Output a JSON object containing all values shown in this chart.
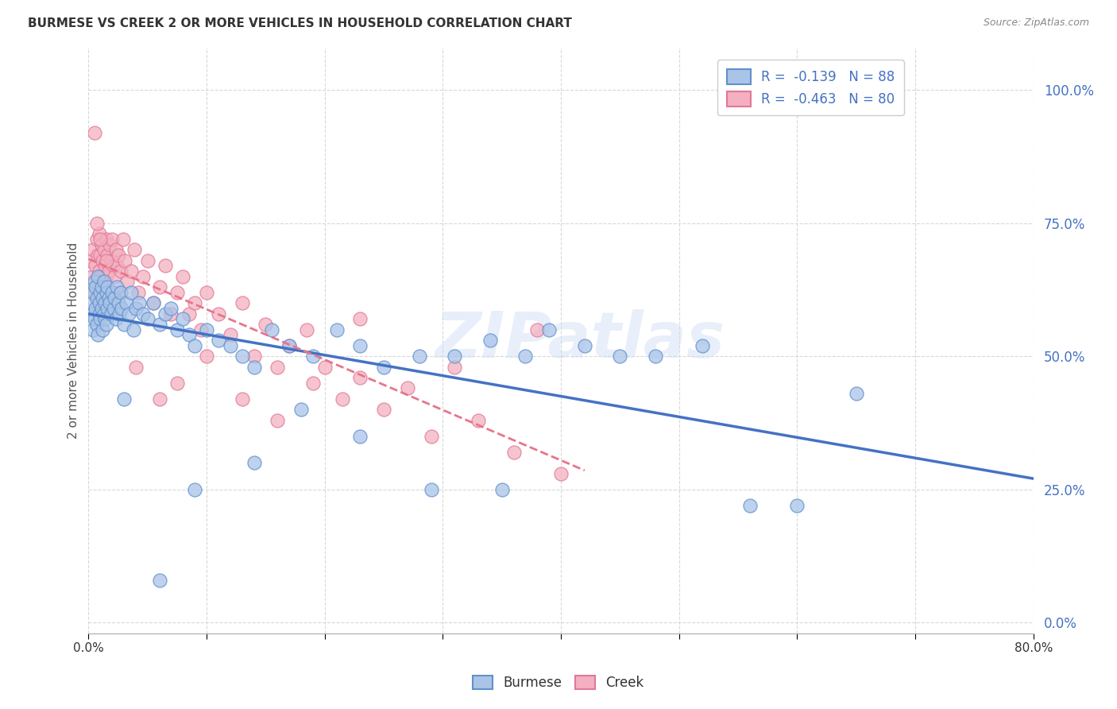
{
  "title": "BURMESE VS CREEK 2 OR MORE VEHICLES IN HOUSEHOLD CORRELATION CHART",
  "source": "Source: ZipAtlas.com",
  "ylabel": "2 or more Vehicles in Household",
  "ytick_vals": [
    0.0,
    0.25,
    0.5,
    0.75,
    1.0
  ],
  "ytick_labels": [
    "0.0%",
    "25.0%",
    "50.0%",
    "75.0%",
    "100.0%"
  ],
  "xlim": [
    0.0,
    0.8
  ],
  "ylim": [
    -0.02,
    1.08
  ],
  "burmese_R": -0.139,
  "burmese_N": 88,
  "creek_R": -0.463,
  "creek_N": 80,
  "burmese_color": "#aac4e8",
  "burmese_edge_color": "#6090cc",
  "creek_color": "#f4b0c0",
  "creek_edge_color": "#e07898",
  "burmese_line_color": "#4472c4",
  "creek_line_color": "#e8758a",
  "watermark": "ZIPatlas",
  "background_color": "#ffffff",
  "grid_color": "#d8d8d8",
  "legend_text_color": "#4472c4",
  "burmese_x": [
    0.002,
    0.003,
    0.004,
    0.004,
    0.005,
    0.005,
    0.006,
    0.006,
    0.007,
    0.007,
    0.008,
    0.008,
    0.009,
    0.009,
    0.01,
    0.01,
    0.011,
    0.011,
    0.012,
    0.012,
    0.013,
    0.013,
    0.014,
    0.014,
    0.015,
    0.015,
    0.016,
    0.016,
    0.017,
    0.018,
    0.019,
    0.02,
    0.021,
    0.022,
    0.023,
    0.024,
    0.025,
    0.026,
    0.027,
    0.028,
    0.03,
    0.032,
    0.034,
    0.036,
    0.038,
    0.04,
    0.043,
    0.046,
    0.05,
    0.055,
    0.06,
    0.065,
    0.07,
    0.075,
    0.08,
    0.085,
    0.09,
    0.1,
    0.11,
    0.12,
    0.13,
    0.14,
    0.155,
    0.17,
    0.19,
    0.21,
    0.23,
    0.25,
    0.28,
    0.31,
    0.34,
    0.37,
    0.39,
    0.42,
    0.45,
    0.48,
    0.52,
    0.56,
    0.6,
    0.65,
    0.29,
    0.35,
    0.23,
    0.18,
    0.14,
    0.09,
    0.06,
    0.03
  ],
  "burmese_y": [
    0.6,
    0.58,
    0.62,
    0.55,
    0.64,
    0.57,
    0.63,
    0.59,
    0.61,
    0.56,
    0.65,
    0.54,
    0.6,
    0.58,
    0.62,
    0.57,
    0.63,
    0.59,
    0.61,
    0.55,
    0.64,
    0.58,
    0.6,
    0.57,
    0.62,
    0.56,
    0.63,
    0.59,
    0.61,
    0.6,
    0.58,
    0.62,
    0.59,
    0.61,
    0.57,
    0.63,
    0.6,
    0.58,
    0.62,
    0.59,
    0.56,
    0.6,
    0.58,
    0.62,
    0.55,
    0.59,
    0.6,
    0.58,
    0.57,
    0.6,
    0.56,
    0.58,
    0.59,
    0.55,
    0.57,
    0.54,
    0.52,
    0.55,
    0.53,
    0.52,
    0.5,
    0.48,
    0.55,
    0.52,
    0.5,
    0.55,
    0.52,
    0.48,
    0.5,
    0.5,
    0.53,
    0.5,
    0.55,
    0.52,
    0.5,
    0.5,
    0.52,
    0.22,
    0.22,
    0.43,
    0.25,
    0.25,
    0.35,
    0.4,
    0.3,
    0.25,
    0.08,
    0.42
  ],
  "creek_x": [
    0.002,
    0.003,
    0.004,
    0.005,
    0.005,
    0.006,
    0.007,
    0.007,
    0.008,
    0.009,
    0.009,
    0.01,
    0.01,
    0.011,
    0.012,
    0.012,
    0.013,
    0.014,
    0.015,
    0.015,
    0.016,
    0.017,
    0.018,
    0.019,
    0.02,
    0.021,
    0.022,
    0.023,
    0.024,
    0.025,
    0.027,
    0.029,
    0.031,
    0.033,
    0.036,
    0.039,
    0.042,
    0.046,
    0.05,
    0.055,
    0.06,
    0.065,
    0.07,
    0.075,
    0.08,
    0.085,
    0.09,
    0.095,
    0.1,
    0.11,
    0.12,
    0.13,
    0.14,
    0.15,
    0.16,
    0.17,
    0.185,
    0.2,
    0.215,
    0.23,
    0.25,
    0.27,
    0.29,
    0.31,
    0.33,
    0.36,
    0.38,
    0.4,
    0.23,
    0.19,
    0.16,
    0.13,
    0.1,
    0.075,
    0.06,
    0.04,
    0.025,
    0.015,
    0.01,
    0.007
  ],
  "creek_y": [
    0.68,
    0.65,
    0.7,
    0.92,
    0.62,
    0.67,
    0.72,
    0.63,
    0.69,
    0.66,
    0.73,
    0.69,
    0.65,
    0.71,
    0.68,
    0.64,
    0.7,
    0.67,
    0.72,
    0.65,
    0.69,
    0.66,
    0.71,
    0.68,
    0.72,
    0.67,
    0.65,
    0.7,
    0.67,
    0.69,
    0.66,
    0.72,
    0.68,
    0.64,
    0.66,
    0.7,
    0.62,
    0.65,
    0.68,
    0.6,
    0.63,
    0.67,
    0.58,
    0.62,
    0.65,
    0.58,
    0.6,
    0.55,
    0.62,
    0.58,
    0.54,
    0.6,
    0.5,
    0.56,
    0.48,
    0.52,
    0.55,
    0.48,
    0.42,
    0.46,
    0.4,
    0.44,
    0.35,
    0.48,
    0.38,
    0.32,
    0.55,
    0.28,
    0.57,
    0.45,
    0.38,
    0.42,
    0.5,
    0.45,
    0.42,
    0.48,
    0.62,
    0.68,
    0.72,
    0.75
  ]
}
